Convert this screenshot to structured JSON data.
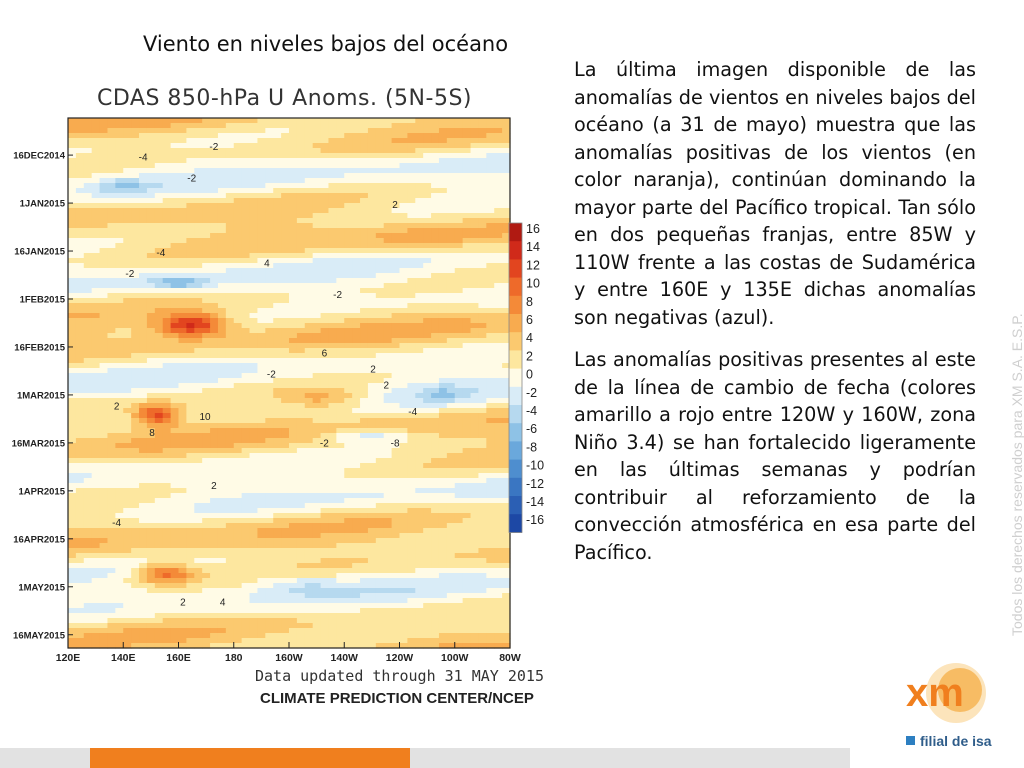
{
  "slide": {
    "title": "Viento en niveles bajos del océano",
    "paragraphs": [
      "La última imagen disponible de las anomalías de vientos en niveles bajos del océano (a 31 de mayo) muestra que las anomalías positivas de los vientos (en color naranja), continúan dominando la mayor parte del Pacífico tropical. Tan sólo en dos pequeñas franjas, entre 85W y 110W frente a las costas de Sudamérica y entre 160E y 135E dichas anomalías son negativas (azul).",
      "Las anomalías positivas presentes al este de la línea de cambio de fecha (colores amarillo a rojo entre 120W y 160W, zona Niño 3.4) se han fortalecido ligeramente en las últimas semanas y podrían contribuir al reforzamiento de la convección atmosférica en esa parte del Pacífico."
    ],
    "copyright": "Todos los derechos reservados para XM S.A. E.S.P.",
    "logo_text": "xm",
    "logo_sub": "filial de isa",
    "colors": {
      "logo_orange": "#f39a1e",
      "logo_blue": "#2d7fc1",
      "bar_orange": "#f07f1e",
      "bar_gray": "#e2e2e2"
    }
  },
  "chart_data": {
    "type": "heatmap",
    "title": "CDAS 850-hPa U Anoms. (5N-5S)",
    "x_ticks": [
      "120E",
      "140E",
      "160E",
      "180",
      "160W",
      "140W",
      "120W",
      "100W",
      "80W"
    ],
    "y_ticks": [
      "16DEC2014",
      "1JAN2015",
      "16JAN2015",
      "1FEB2015",
      "16FEB2015",
      "1MAR2015",
      "16MAR2015",
      "1APR2015",
      "16APR2015",
      "1MAY2015",
      "16MAY2015"
    ],
    "colorbar_levels": [
      16,
      14,
      12,
      10,
      8,
      6,
      4,
      2,
      0,
      -2,
      -4,
      -6,
      -8,
      -10,
      -12,
      -14,
      -16
    ],
    "colorbar_colors": [
      "#b01a12",
      "#d02a1a",
      "#e2451f",
      "#ee6a2a",
      "#f48a38",
      "#f8ab4f",
      "#fbc96f",
      "#fde79f",
      "#fffbe6",
      "#d9ecf7",
      "#b6d9ef",
      "#8ec2e6",
      "#6aa8dc",
      "#4e8ecf",
      "#3a76c2",
      "#2b5fb4",
      "#1d48a5"
    ],
    "contour_labels": [
      "-4",
      "-2",
      "-2",
      "-4",
      "-2",
      "4",
      "6",
      "2",
      "-2",
      "2",
      "2",
      "10",
      "8",
      "-4",
      "-8",
      "-2",
      "2",
      "-2",
      "2",
      "-4",
      "4",
      "2"
    ],
    "footer_updated": "Data updated through 31 MAY 2015",
    "footer_source": "CLIMATE PREDICTION CENTER/NCEP"
  }
}
